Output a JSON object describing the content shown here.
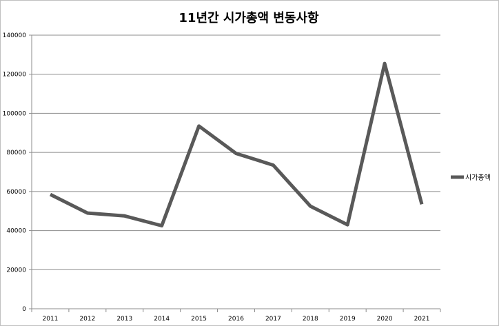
{
  "chart_data": {
    "type": "line",
    "title": "11년간 시가총액 변동사항",
    "xlabel": "",
    "ylabel": "",
    "categories": [
      "2011",
      "2012",
      "2013",
      "2014",
      "2015",
      "2016",
      "2017",
      "2018",
      "2019",
      "2020",
      "2021"
    ],
    "series": [
      {
        "name": "시가총액",
        "color": "#595959",
        "values": [
          58500,
          49000,
          47500,
          42500,
          93500,
          79500,
          73500,
          52500,
          43000,
          125500,
          53500
        ]
      }
    ],
    "ylim": [
      0,
      140000
    ],
    "yticks": [
      "0",
      "20000",
      "40000",
      "60000",
      "80000",
      "100000",
      "120000",
      "140000"
    ],
    "grid": true,
    "legend_position": "right"
  }
}
